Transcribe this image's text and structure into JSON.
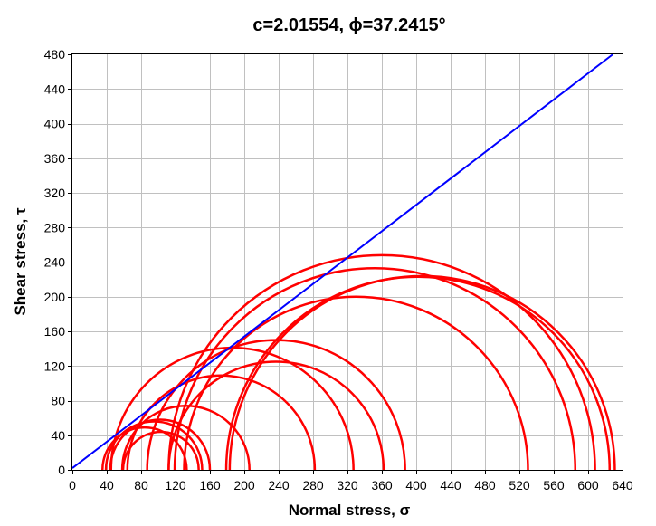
{
  "chart_data": {
    "type": "line",
    "title": "c=2.01554, ϕ=37.2415°",
    "xlabel": "Normal stress, σ",
    "ylabel": "Shear stress, τ",
    "xlim": [
      0,
      640
    ],
    "ylim": [
      0,
      480
    ],
    "x_ticks": [
      "0",
      "40",
      "80",
      "120",
      "160",
      "200",
      "240",
      "280",
      "320",
      "360",
      "400",
      "440",
      "480",
      "520",
      "560",
      "600",
      "640"
    ],
    "y_ticks": [
      "0",
      "40",
      "80",
      "120",
      "160",
      "200",
      "240",
      "280",
      "320",
      "360",
      "400",
      "440",
      "480"
    ],
    "grid": true,
    "colors": {
      "envelope": "#0000ff",
      "circles": "#ff0000",
      "grid": "#c0c0c0"
    },
    "envelope": {
      "c": 2.01554,
      "phi_deg": 37.2415
    },
    "mohr_circles": [
      {
        "center": 84,
        "radius": 49
      },
      {
        "center": 95,
        "radius": 56
      },
      {
        "center": 102,
        "radius": 58
      },
      {
        "center": 103,
        "radius": 44
      },
      {
        "center": 132,
        "radius": 74
      },
      {
        "center": 173,
        "radius": 109
      },
      {
        "center": 186,
        "radius": 141
      },
      {
        "center": 237,
        "radius": 125
      },
      {
        "center": 237,
        "radius": 150
      },
      {
        "center": 330,
        "radius": 200
      },
      {
        "center": 352,
        "radius": 233
      },
      {
        "center": 360,
        "radius": 248
      },
      {
        "center": 402,
        "radius": 223
      },
      {
        "center": 407,
        "radius": 224
      }
    ]
  }
}
